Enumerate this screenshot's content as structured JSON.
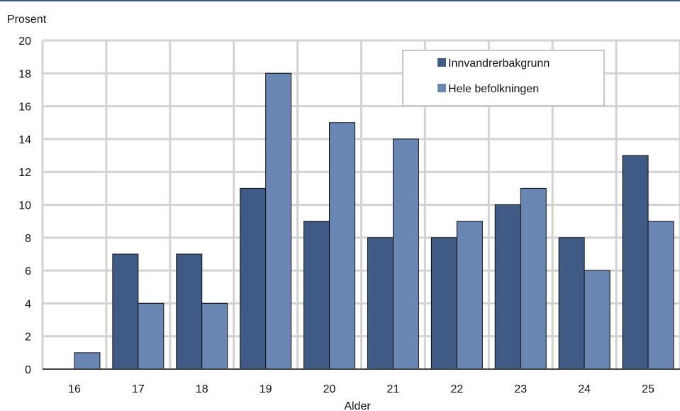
{
  "chart_data": {
    "type": "bar",
    "title": "",
    "ylabel": "Prosent",
    "xlabel": "Alder",
    "categories": [
      "16",
      "17",
      "18",
      "19",
      "20",
      "21",
      "22",
      "23",
      "24",
      "25"
    ],
    "series": [
      {
        "name": "Innvandrerbakgrunn",
        "color": "#3f5a84",
        "values": [
          0,
          7,
          7,
          11,
          9,
          8,
          8,
          10,
          8,
          13
        ]
      },
      {
        "name": "Hele befolkningen",
        "color": "#6a86b3",
        "values": [
          1,
          4,
          4,
          18,
          15,
          14,
          9,
          11,
          6,
          9
        ]
      }
    ],
    "ylim": [
      0,
      20
    ],
    "yticks": [
      "0",
      "2",
      "4",
      "6",
      "8",
      "10",
      "12",
      "14",
      "16",
      "18",
      "20"
    ],
    "grid": true,
    "legend_position": "top-right"
  }
}
